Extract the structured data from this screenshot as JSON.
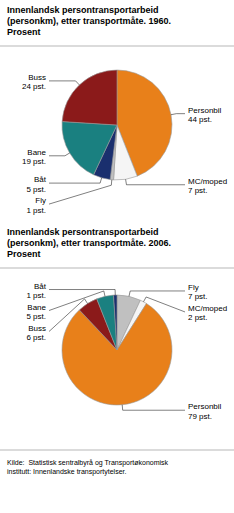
{
  "chart_data": [
    {
      "type": "pie",
      "title": "Innenlandsk persontransportarbeid\n(personkm), etter transportmåte. 1960.\nProsent",
      "categories": [
        "Personbil",
        "MC/moped",
        "Fly",
        "Båt",
        "Bane",
        "Buss"
      ],
      "values": [
        44,
        7,
        1,
        5,
        19,
        24
      ],
      "value_labels": [
        "44 pst.",
        "7 pst.",
        "1 pst.",
        "5 pst.",
        "19 pst.",
        "24 pst."
      ],
      "colors": [
        "#E8801A",
        "#F5F5F5",
        "#C0C0C0",
        "#1A2F6E",
        "#1A8080",
        "#8B1A1A"
      ],
      "data_labels": true
    },
    {
      "type": "pie",
      "title": "Innenlandsk persontransportarbeid\n(personkm), etter transportmåte. 2006.\nProsent",
      "categories": [
        "Fly",
        "MC/moped",
        "Personbil",
        "Buss",
        "Bane",
        "Båt"
      ],
      "values": [
        7,
        2,
        79,
        6,
        5,
        1
      ],
      "value_labels": [
        "7 pst.",
        "2 pst.",
        "79 pst.",
        "6 pst.",
        "5 pst.",
        "1 pst."
      ],
      "colors": [
        "#C0C0C0",
        "#F5F5F5",
        "#E8801A",
        "#8B1A1A",
        "#1A8080",
        "#1A2F6E"
      ],
      "data_labels": true,
      "annotations": [
        "Kilde:  Statistisk sentralbyrå og Transportøkonomisk\ninstitutt: Innenlandske transportytelser."
      ]
    }
  ]
}
